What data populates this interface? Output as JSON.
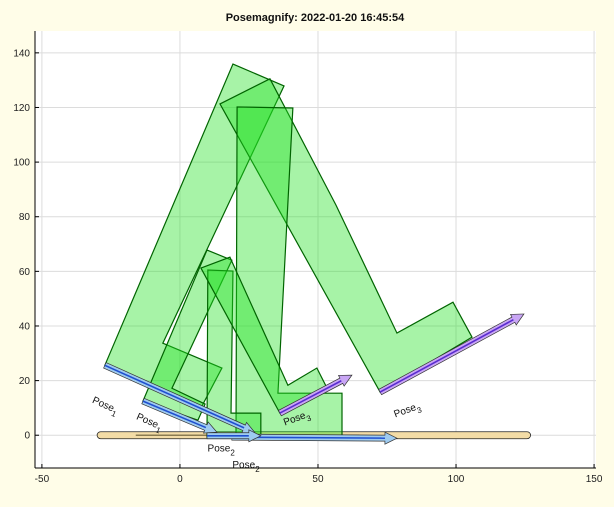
{
  "chart_data": {
    "type": "diagram-plot",
    "title": "Posemagnify: 2022-01-20 16:45:54",
    "xlim": [
      -52.5,
      150.7
    ],
    "ylim": [
      -12,
      148
    ],
    "xticks": [
      -50,
      0,
      50,
      100,
      150
    ],
    "yticks": [
      0,
      20,
      40,
      60,
      80,
      100,
      120,
      140
    ],
    "grid": true,
    "colors": {
      "fill": "#22e022",
      "stroke": "#006400",
      "pose12_arrow": "#9ecbf0",
      "pose12_line": "#1f4fd0",
      "pose3_arrow": "#c9a6f5",
      "pose3_line": "#5b2bd0",
      "base": "#f3dca6",
      "background": "#fffde8"
    },
    "base_bar": {
      "x": [
        -30,
        127
      ],
      "y": 0,
      "inner_x": [
        -16,
        65
      ]
    },
    "shapes": [
      {
        "name": "pose1-large",
        "points": [
          [
            -27.2,
            25.6
          ],
          [
            19.2,
            135.9
          ],
          [
            37.7,
            127.9
          ],
          [
            -6.2,
            33.7
          ],
          [
            15.2,
            24.6
          ],
          [
            7.2,
            9.2
          ]
        ]
      },
      {
        "name": "pose3-large",
        "points": [
          [
            14.5,
            121.3
          ],
          [
            32.6,
            130.5
          ],
          [
            56.5,
            84.3
          ],
          [
            78.6,
            37.4
          ],
          [
            98.9,
            48.7
          ],
          [
            105.8,
            35.9
          ],
          [
            72.5,
            15.8
          ]
        ]
      },
      {
        "name": "pose2-large",
        "points": [
          [
            20.3,
            -0.7
          ],
          [
            20.7,
            120.2
          ],
          [
            40.9,
            119.8
          ],
          [
            35.5,
            15.4
          ],
          [
            58.7,
            15.4
          ],
          [
            58.7,
            -0.7
          ]
        ]
      },
      {
        "name": "pose1-small",
        "points": [
          [
            -13.4,
            12.5
          ],
          [
            9.8,
            67.8
          ],
          [
            18.8,
            64.1
          ],
          [
            -2.9,
            17.2
          ],
          [
            9.1,
            11.4
          ],
          [
            6.5,
            5.5
          ]
        ]
      },
      {
        "name": "pose2-small",
        "points": [
          [
            9.8,
            -0.7
          ],
          [
            10.1,
            60.5
          ],
          [
            19.2,
            60.1
          ],
          [
            18.5,
            8.1
          ],
          [
            29.3,
            8.1
          ],
          [
            29.3,
            -0.7
          ]
        ]
      },
      {
        "name": "pose3-small",
        "points": [
          [
            7.6,
            61.2
          ],
          [
            18.1,
            65.2
          ],
          [
            39.1,
            18.3
          ],
          [
            49.6,
            24.6
          ],
          [
            53.3,
            17.2
          ],
          [
            36.2,
            8.1
          ]
        ]
      }
    ],
    "arrows": [
      {
        "name": "pose1-large-arrow",
        "from": [
          -27.2,
          25.6
        ],
        "to": [
          27.2,
          0.9
        ],
        "kind": "blue"
      },
      {
        "name": "pose1-small-arrow",
        "from": [
          -13.4,
          12.5
        ],
        "to": [
          13.4,
          1.1
        ],
        "kind": "blue"
      },
      {
        "name": "pose2-large-arrow",
        "from": [
          18.8,
          -0.7
        ],
        "to": [
          78.6,
          -1.1
        ],
        "kind": "blue"
      },
      {
        "name": "pose2-small-arrow",
        "from": [
          9.8,
          -0.2
        ],
        "to": [
          29.3,
          -0.2
        ],
        "kind": "blue"
      },
      {
        "name": "pose3-large-arrow",
        "from": [
          72.5,
          15.8
        ],
        "to": [
          124.6,
          44.4
        ],
        "kind": "purple"
      },
      {
        "name": "pose3-small-arrow",
        "from": [
          36.2,
          8.1
        ],
        "to": [
          62.3,
          22.0
        ],
        "kind": "purple"
      }
    ],
    "labels": [
      {
        "base": "Pose",
        "sub": "1",
        "at": [
          -32,
          12
        ],
        "angle": 24
      },
      {
        "base": "Pose",
        "sub": "1",
        "at": [
          -16,
          6
        ],
        "angle": 24
      },
      {
        "base": "Pose",
        "sub": "2",
        "at": [
          10,
          -6
        ],
        "angle": 0
      },
      {
        "base": "Pose",
        "sub": "2",
        "at": [
          19,
          -12
        ],
        "angle": 0
      },
      {
        "base": "Pose",
        "sub": "3",
        "at": [
          38,
          3.5
        ],
        "angle": -20
      },
      {
        "base": "Pose",
        "sub": "3",
        "at": [
          78,
          6.5
        ],
        "angle": -20
      }
    ]
  }
}
